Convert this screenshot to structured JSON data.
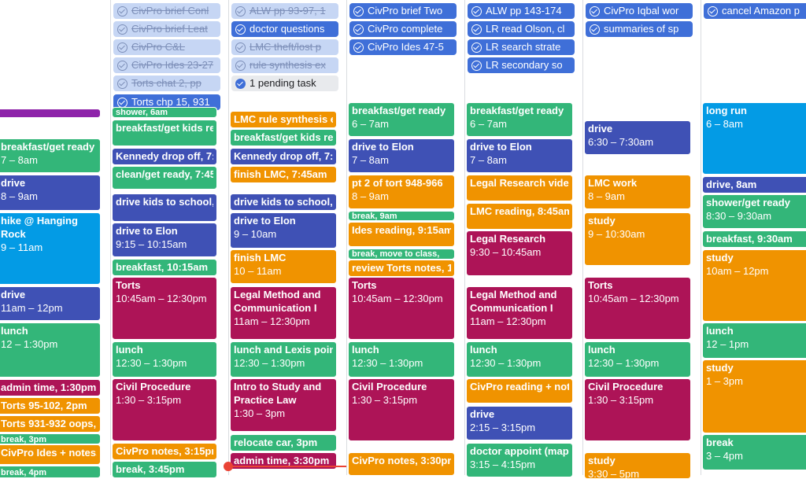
{
  "tasks": {
    "col1": [
      "CivPro brief Conl",
      "CivPro brief Leat",
      "CivPro C&L",
      "CivPro Ides 23-27",
      "Torts chat 2, pp",
      "Torts chp 15, 931"
    ],
    "col2": [
      "ALW pp 93-97, 1",
      "doctor questions",
      "LMC theft/lost p",
      "rule synthesis ex",
      "1 pending task"
    ],
    "col3": [
      "CivPro brief Two",
      "CivPro complete",
      "CivPro Ides 47-5"
    ],
    "col4": [
      "ALW pp 143-174",
      "LR read Olson, cl",
      "LR search strate",
      "LR secondary so"
    ],
    "col5": [
      "CivPro Iqbal wor",
      "summaries of sp"
    ],
    "col6": [
      "cancel Amazon p"
    ]
  },
  "events": {
    "c0": [
      {
        "title": "breakfast/get ready",
        "time": "7 – 8am"
      },
      {
        "title": "drive",
        "time": "8 – 9am"
      },
      {
        "title": "hike @ Hanging Rock",
        "time": "9 – 11am"
      },
      {
        "title": "drive",
        "time": "11am – 12pm"
      },
      {
        "title": "lunch",
        "time": "12 – 1:30pm"
      },
      {
        "title": "admin time, 1:30pm"
      },
      {
        "title": "Torts 95-102, 2pm"
      },
      {
        "title": "Torts 931-932 oops,"
      },
      {
        "title": "break, 3pm"
      },
      {
        "title": "CivPro Ides + notes,"
      },
      {
        "title": "break, 4pm"
      }
    ],
    "c1": [
      {
        "title": "shower, 6am"
      },
      {
        "title": "breakfast/get kids re"
      },
      {
        "title": "Kennedy drop off, 7:"
      },
      {
        "title": "clean/get ready, 7:45"
      },
      {
        "title": "drive kids to school,"
      },
      {
        "title": "drive to Elon",
        "time": "9:15 – 10:15am"
      },
      {
        "title": "breakfast, 10:15am"
      },
      {
        "title": "Torts",
        "time": "10:45am – 12:30pm"
      },
      {
        "title": "lunch",
        "time": "12:30 – 1:30pm"
      },
      {
        "title": "Civil Procedure",
        "time": "1:30 – 3:15pm"
      },
      {
        "title": "CivPro notes, 3:15pm"
      },
      {
        "title": "break, 3:45pm"
      }
    ],
    "c2": [
      {
        "title": "LMC rule synthesis e"
      },
      {
        "title": "breakfast/get kids re"
      },
      {
        "title": "Kennedy drop off, 7:"
      },
      {
        "title": "finish LMC, 7:45am"
      },
      {
        "title": "drive kids to school,"
      },
      {
        "title": "drive to Elon",
        "time": "9 – 10am"
      },
      {
        "title": "finish LMC",
        "time": "10 – 11am"
      },
      {
        "title": "Legal Method and Communication I",
        "time": "11am – 12:30pm"
      },
      {
        "title": "lunch and Lexis poin",
        "time": "12:30 – 1:30pm"
      },
      {
        "title": "Intro to Study and Practice Law",
        "time": "1:30 – 3pm"
      },
      {
        "title": "relocate car, 3pm"
      },
      {
        "title": "admin time, 3:30pm"
      }
    ],
    "c3": [
      {
        "title": "breakfast/get ready",
        "time": "6 – 7am"
      },
      {
        "title": "drive to Elon",
        "time": "7 – 8am"
      },
      {
        "title": "pt 2 of tort 948-966",
        "time": "8 – 9am"
      },
      {
        "title": "break, 9am"
      },
      {
        "title": "Ides reading, 9:15am"
      },
      {
        "title": "break, move to class,"
      },
      {
        "title": "review Torts notes, 1"
      },
      {
        "title": "Torts",
        "time": "10:45am – 12:30pm"
      },
      {
        "title": "lunch",
        "time": "12:30 – 1:30pm"
      },
      {
        "title": "Civil Procedure",
        "time": "1:30 – 3:15pm"
      },
      {
        "title": "CivPro notes, 3:30pm"
      }
    ],
    "c4": [
      {
        "title": "breakfast/get ready",
        "time": "6 – 7am"
      },
      {
        "title": "drive to Elon",
        "time": "7 – 8am"
      },
      {
        "title": "Legal Research vide"
      },
      {
        "title": "LMC reading, 8:45am"
      },
      {
        "title": "Legal Research",
        "time": "9:30 – 10:45am"
      },
      {
        "title": "Legal Method and Communication I",
        "time": "11am – 12:30pm"
      },
      {
        "title": "lunch",
        "time": "12:30 – 1:30pm"
      },
      {
        "title": "CivPro reading + not"
      },
      {
        "title": "drive",
        "time": "2:15 – 3:15pm"
      },
      {
        "title": "doctor appoint (map",
        "time": "3:15 – 4:15pm"
      }
    ],
    "c5": [
      {
        "title": "drive",
        "time": "6:30 – 7:30am"
      },
      {
        "title": "LMC work",
        "time": "8 – 9am"
      },
      {
        "title": "study",
        "time": "9 – 10:30am"
      },
      {
        "title": "Torts",
        "time": "10:45am – 12:30pm"
      },
      {
        "title": "lunch",
        "time": "12:30 – 1:30pm"
      },
      {
        "title": "Civil Procedure",
        "time": "1:30 – 3:15pm"
      },
      {
        "title": "study",
        "time": "3:30 – 5pm"
      }
    ],
    "c6": [
      {
        "title": "long run",
        "time": "6 – 8am"
      },
      {
        "title": "drive, 8am"
      },
      {
        "title": "shower/get ready",
        "time": "8:30 – 9:30am"
      },
      {
        "title": "breakfast, 9:30am"
      },
      {
        "title": "study",
        "time": "10am – 12pm"
      },
      {
        "title": "lunch",
        "time": "12 – 1pm"
      },
      {
        "title": "study",
        "time": "1 – 3pm"
      },
      {
        "title": "break",
        "time": "3 – 4pm"
      }
    ]
  }
}
